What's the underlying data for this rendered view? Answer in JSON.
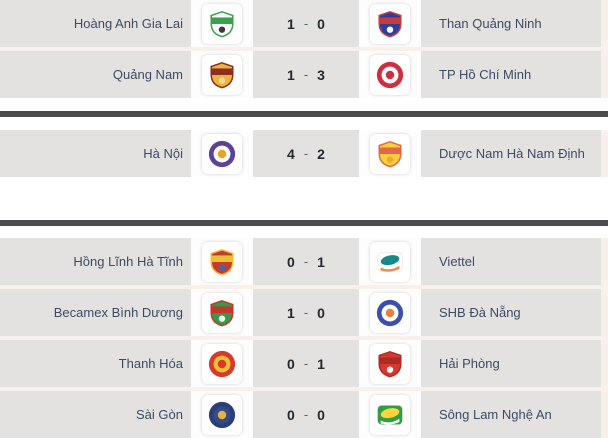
{
  "theme": {
    "page_bg": "#ffffff",
    "group_bg": "#f8f0ed",
    "row_bg": "#e4e2e1",
    "divider_color": "#4c4c4e",
    "team_text_color": "#3d4a63",
    "score_color": "#23292f",
    "card_bg": "#ffffff"
  },
  "score_separator": "-",
  "groups": [
    {
      "matches": [
        {
          "home": {
            "name": "Hoàng Anh Gia Lai",
            "crest": {
              "icon": "hoang-anh-gia-lai-crest-icon",
              "type": "shield",
              "c1": "#ffffff",
              "c2": "#37a34a",
              "c3": "#3a3a3a"
            }
          },
          "score": {
            "home": "1",
            "away": "0"
          },
          "away": {
            "name": "Than Quảng Ninh",
            "crest": {
              "icon": "than-quang-ninh-crest-icon",
              "type": "shield",
              "c1": "#2b3f9e",
              "c2": "#c93a3a",
              "c3": "#ffffff"
            }
          }
        },
        {
          "home": {
            "name": "Quảng Nam",
            "crest": {
              "icon": "quang-nam-crest-icon",
              "type": "shield",
              "c1": "#e9b440",
              "c2": "#8e2f1e",
              "c3": "#f3d98b"
            }
          },
          "score": {
            "home": "1",
            "away": "3"
          },
          "away": {
            "name": "TP Hồ Chí Minh",
            "crest": {
              "icon": "tp-ho-chi-minh-crest-icon",
              "type": "circle",
              "c1": "#cf2e3e",
              "c2": "#ffffff",
              "c3": "#cf2e3e"
            }
          }
        }
      ]
    },
    {
      "matches": [
        {
          "home": {
            "name": "Hà Nội",
            "crest": {
              "icon": "ha-noi-crest-icon",
              "type": "circle",
              "c1": "#5e3f99",
              "c2": "#ffffff",
              "c3": "#e8a41f"
            }
          },
          "score": {
            "home": "4",
            "away": "2"
          },
          "away": {
            "name": "Dược Nam Hà Nam Định",
            "crest": {
              "icon": "nam-dinh-crest-icon",
              "type": "shield",
              "c1": "#f7d03c",
              "c2": "#e2674a",
              "c3": "#f0a63a"
            }
          }
        }
      ]
    },
    {
      "matches": [
        {
          "home": {
            "name": "Hồng Lĩnh Hà Tĩnh",
            "crest": {
              "icon": "hong-linh-ha-tinh-crest-icon",
              "type": "shield",
              "c1": "#c43b2f",
              "c2": "#eebf35",
              "c3": "#3e68a8"
            }
          },
          "score": {
            "home": "0",
            "away": "1"
          },
          "away": {
            "name": "Viettel",
            "crest": {
              "icon": "viettel-crest-icon",
              "type": "swoosh",
              "c1": "#ffffff",
              "c2": "#16888a",
              "c3": "#e98a3c"
            }
          }
        },
        {
          "home": {
            "name": "Becamex Bình Dương",
            "crest": {
              "icon": "becamex-binh-duong-crest-icon",
              "type": "shield",
              "c1": "#2e9e44",
              "c2": "#c7352c",
              "c3": "#f5f5f5"
            }
          },
          "score": {
            "home": "1",
            "away": "0"
          },
          "away": {
            "name": "SHB Đà Nẵng",
            "crest": {
              "icon": "shb-da-nang-crest-icon",
              "type": "circle",
              "c1": "#3c4fae",
              "c2": "#ffffff",
              "c3": "#e87f35"
            }
          }
        },
        {
          "home": {
            "name": "Thanh Hóa",
            "crest": {
              "icon": "thanh-hoa-crest-icon",
              "type": "circle",
              "c1": "#d8392e",
              "c2": "#f0c030",
              "c3": "#d8392e"
            }
          },
          "score": {
            "home": "0",
            "away": "1"
          },
          "away": {
            "name": "Hải Phòng",
            "crest": {
              "icon": "hai-phong-crest-icon",
              "type": "shield",
              "c1": "#d8392e",
              "c2": "#b02a24",
              "c3": "#ffffff"
            }
          }
        },
        {
          "home": {
            "name": "Sài Gòn",
            "crest": {
              "icon": "sai-gon-crest-icon",
              "type": "circle",
              "c1": "#2c3e76",
              "c2": "#354a87",
              "c3": "#e9b23c"
            }
          },
          "score": {
            "home": "0",
            "away": "0"
          },
          "away": {
            "name": "Sông Lam Nghệ An",
            "crest": {
              "icon": "song-lam-nghe-an-crest-icon",
              "type": "swoosh",
              "c1": "#2f9e44",
              "c2": "#ffd43b",
              "c3": "#ffffff"
            }
          }
        }
      ]
    }
  ]
}
